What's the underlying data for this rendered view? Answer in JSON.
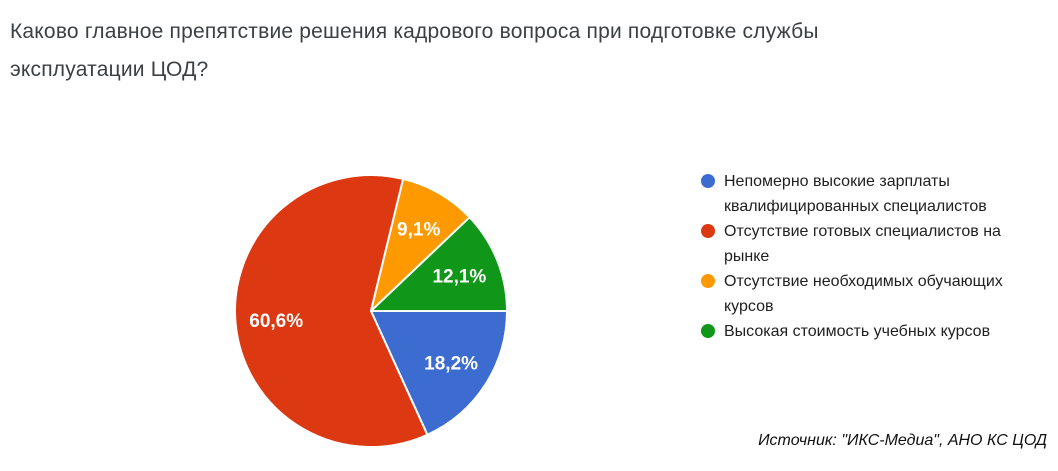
{
  "title": {
    "lines": [
      "Каково главное препятствие решения кадрового вопроса при подготовке службы",
      "эксплуатации ЦОД?"
    ]
  },
  "source": {
    "text": "Источник: \"ИКС-Медиа\", АНО КС ЦОД"
  },
  "colors": {
    "background": "#ffffff",
    "title_text": "#3c4043",
    "legend_text": "#212121",
    "slice_label_text": "#ffffff",
    "slice_divider": "#ffffff"
  },
  "chart_data": {
    "type": "pie",
    "title": "Каково главное препятствие решения кадрового вопроса при подготовке службы эксплуатации ЦОД?",
    "legend_position": "right",
    "start_angle_deg_clockwise_from_top": 90,
    "label_radius_fraction": 0.7,
    "total_percent": 100,
    "series": [
      {
        "name": "Непомерно высокие зарплаты квалифицированных специалистов",
        "value": 18.2,
        "label": "18,2%",
        "color": "#3D6CD0"
      },
      {
        "name": "Отсутствие готовых специалистов на рынке",
        "value": 60.6,
        "label": "60,6%",
        "color": "#DC3912"
      },
      {
        "name": "Отсутствие необходимых обучающих курсов",
        "value": 9.1,
        "label": "9,1%",
        "color": "#FF9900"
      },
      {
        "name": "Высокая стоимость учебных курсов",
        "value": 12.1,
        "label": "12,1%",
        "color": "#109618"
      }
    ]
  }
}
